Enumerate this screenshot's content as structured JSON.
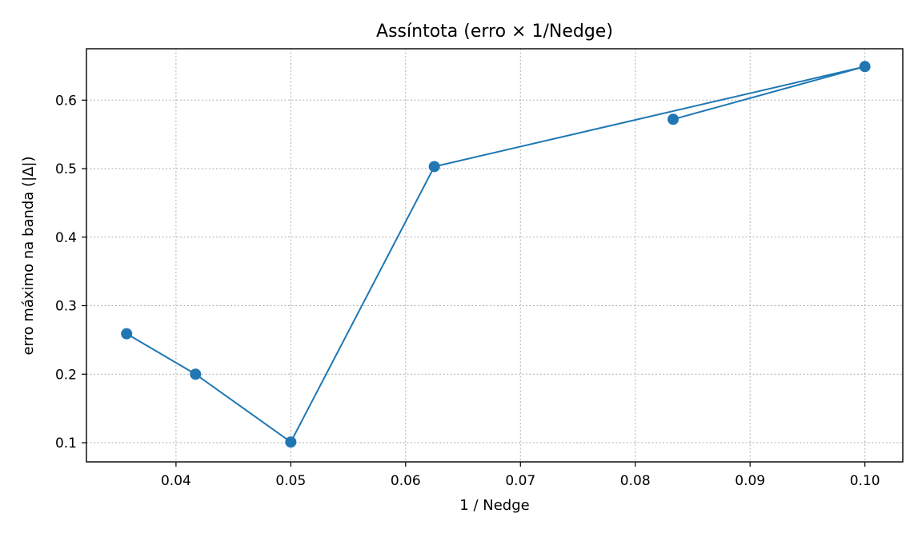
{
  "chart_data": {
    "type": "line",
    "title": "Assíntota (erro × 1/Nedge)",
    "xlabel": "1 / Nedge",
    "ylabel": "erro máximo na banda (|Δ|)",
    "xlim": [
      0.0322,
      0.1033
    ],
    "ylim": [
      0.072,
      0.675
    ],
    "xticks": [
      0.04,
      0.05,
      0.06,
      0.07,
      0.08,
      0.09,
      0.1
    ],
    "xtick_labels": [
      "0.04",
      "0.05",
      "0.06",
      "0.07",
      "0.08",
      "0.09",
      "0.10"
    ],
    "yticks": [
      0.1,
      0.2,
      0.3,
      0.4,
      0.5,
      0.6
    ],
    "ytick_labels": [
      "0.1",
      "0.2",
      "0.3",
      "0.4",
      "0.5",
      "0.6"
    ],
    "grid": true,
    "series": [
      {
        "color": "#1f77b4",
        "marker": "circle",
        "x": [
          0.0357,
          0.0417,
          0.05,
          0.0625,
          0.1,
          0.0833
        ],
        "y": [
          0.259,
          0.2,
          0.101,
          0.503,
          0.649,
          0.572
        ]
      }
    ]
  }
}
